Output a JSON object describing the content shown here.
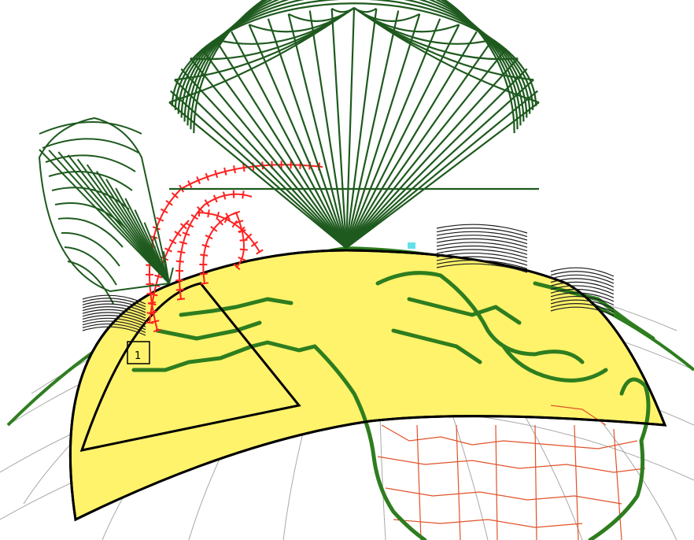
{
  "colors": {
    "background": "#ffffff",
    "globe_grid": "#a8a8a8",
    "continent_outline": "#2e7d1f",
    "footprint_fill": "#fff36b",
    "footprint_outline": "#000000",
    "state_borders": "#e0522a",
    "antenna_mesh": "#1e5a1e",
    "small_beam_mesh": "#1a1a1a",
    "orbit_track": "#ff2020",
    "highlight": "#66e0e8"
  },
  "icons": [
    "globe-grid",
    "satellite-beam-mesh",
    "coverage-footprint",
    "orbit-track"
  ],
  "marker": {
    "label": "1"
  }
}
